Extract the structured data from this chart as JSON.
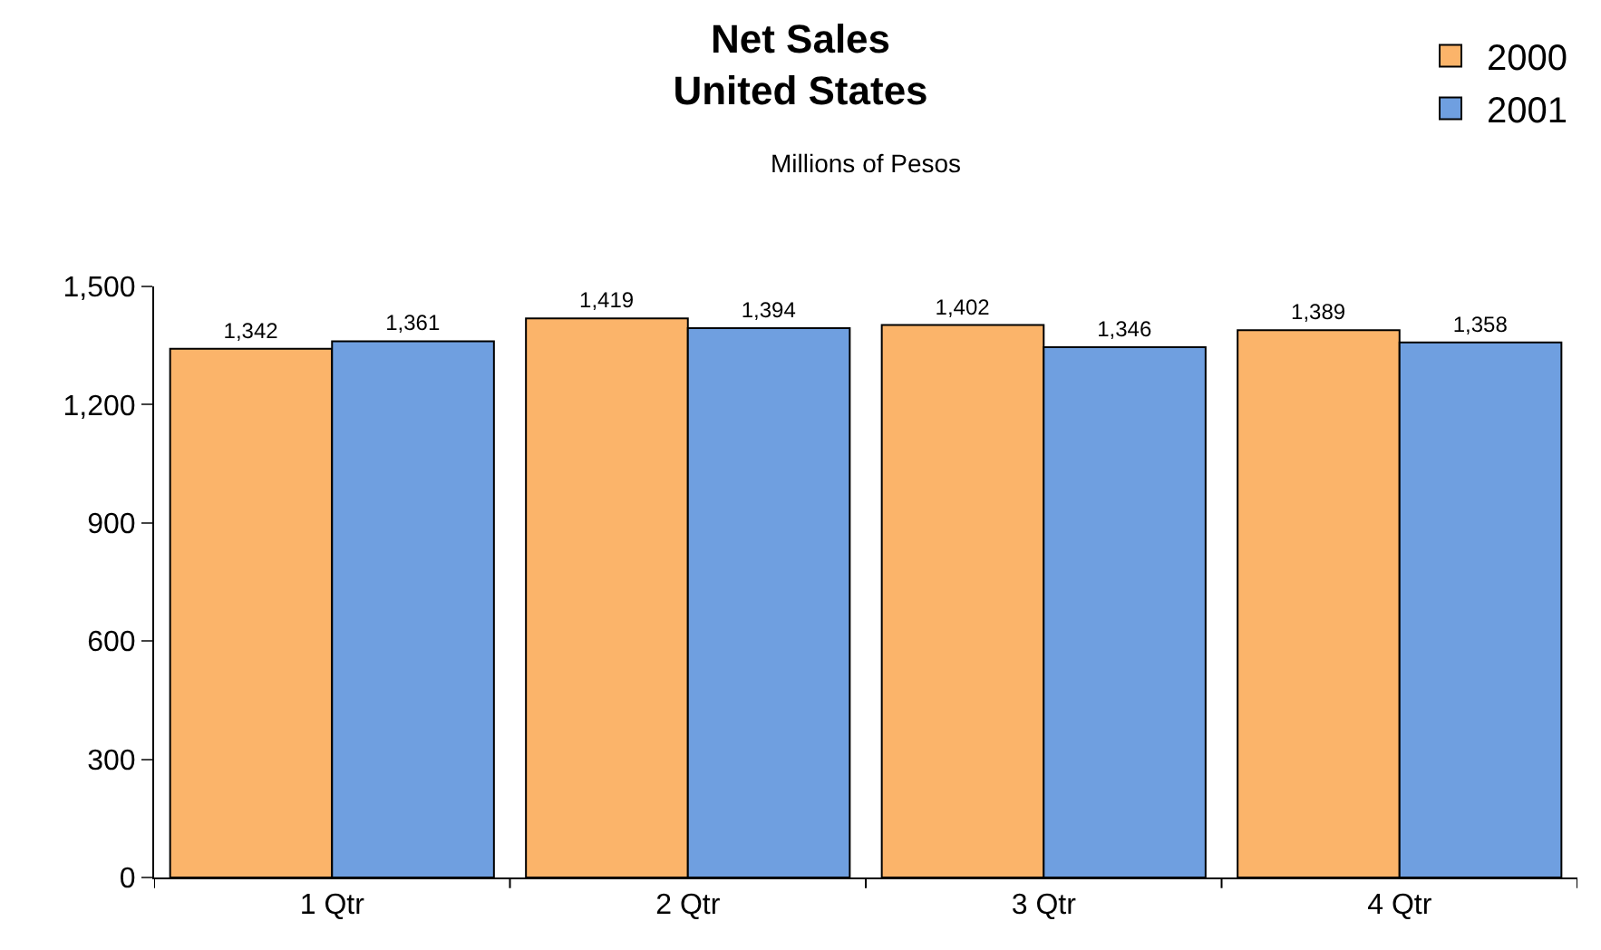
{
  "chart_data": {
    "type": "bar",
    "title": "Net Sales\nUnited States",
    "subtitle": "Millions of Pesos",
    "categories": [
      "1 Qtr",
      "2 Qtr",
      "3 Qtr",
      "4 Qtr"
    ],
    "series": [
      {
        "name": "2000",
        "color": "#fbb46a",
        "values": [
          1342,
          1419,
          1402,
          1389
        ],
        "value_labels": [
          "1,342",
          "1,419",
          "1,402",
          "1,389"
        ]
      },
      {
        "name": "2001",
        "color": "#6f9fe0",
        "values": [
          1361,
          1394,
          1346,
          1358
        ],
        "value_labels": [
          "1,361",
          "1,394",
          "1,346",
          "1,358"
        ]
      }
    ],
    "ylim": [
      0,
      1500
    ],
    "yticks": [
      0,
      300,
      600,
      900,
      {
        "value": 1200,
        "label": "1,200"
      },
      {
        "value": 1500,
        "label": "1,500"
      }
    ],
    "legend": "top right"
  }
}
